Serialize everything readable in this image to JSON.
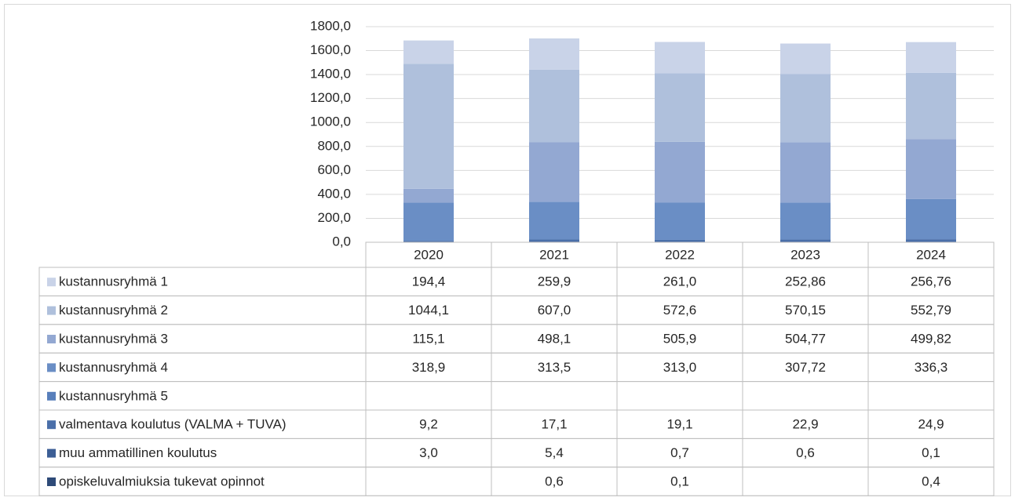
{
  "chart_data": {
    "type": "bar",
    "stacked": true,
    "categories": [
      "2020",
      "2021",
      "2022",
      "2023",
      "2024"
    ],
    "ylim": [
      0,
      1800
    ],
    "yticks": [
      {
        "value": 0,
        "label": "0,0"
      },
      {
        "value": 200,
        "label": "200,0"
      },
      {
        "value": 400,
        "label": "400,0"
      },
      {
        "value": 600,
        "label": "600,0"
      },
      {
        "value": 800,
        "label": "800,0"
      },
      {
        "value": 1000,
        "label": "1000,0"
      },
      {
        "value": 1200,
        "label": "1200,0"
      },
      {
        "value": 1400,
        "label": "1400,0"
      },
      {
        "value": 1600,
        "label": "1600,0"
      },
      {
        "value": 1800,
        "label": "1800,0"
      }
    ],
    "grid": true,
    "series": [
      {
        "name": "kustannusryhmä 1",
        "color": "#c9d3e8",
        "values": [
          194.4,
          259.9,
          261.0,
          252.86,
          256.76
        ],
        "value_labels": [
          "194,4",
          "259,9",
          "261,0",
          "252,86",
          "256,76"
        ]
      },
      {
        "name": "kustannusryhmä 2",
        "color": "#afc0dc",
        "values": [
          1044.1,
          607.0,
          572.6,
          570.15,
          552.79
        ],
        "value_labels": [
          "1044,1",
          "607,0",
          "572,6",
          "570,15",
          "552,79"
        ]
      },
      {
        "name": "kustannusryhmä 3",
        "color": "#93a8d2",
        "values": [
          115.1,
          498.1,
          505.9,
          504.77,
          499.82
        ],
        "value_labels": [
          "115,1",
          "498,1",
          "505,9",
          "504,77",
          "499,82"
        ]
      },
      {
        "name": "kustannusryhmä 4",
        "color": "#6a8ec5",
        "values": [
          318.9,
          313.5,
          313.0,
          307.72,
          336.3
        ],
        "value_labels": [
          "318,9",
          "313,5",
          "313,0",
          "307,72",
          "336,3"
        ]
      },
      {
        "name": "kustannusryhmä 5",
        "color": "#587fbb",
        "values": [
          null,
          null,
          null,
          null,
          null
        ],
        "value_labels": [
          null,
          null,
          null,
          null,
          null
        ]
      },
      {
        "name": "valmentava koulutus (VALMA + TUVA)",
        "color": "#4a6fa9",
        "values": [
          9.2,
          17.1,
          19.1,
          22.9,
          24.9
        ],
        "value_labels": [
          "9,2",
          "17,1",
          "19,1",
          "22,9",
          "24,9"
        ]
      },
      {
        "name": "muu ammatillinen koulutus",
        "color": "#3c5e95",
        "values": [
          3.0,
          5.4,
          0.7,
          0.6,
          0.1
        ],
        "value_labels": [
          "3,0",
          "5,4",
          "0,7",
          "0,6",
          "0,1"
        ]
      },
      {
        "name": "opiskeluvalmiuksia tukevat opinnot",
        "color": "#2e4a78",
        "values": [
          null,
          0.6,
          0.1,
          null,
          0.4
        ],
        "value_labels": [
          null,
          "0,6",
          "0,1",
          null,
          "0,4"
        ]
      }
    ]
  }
}
